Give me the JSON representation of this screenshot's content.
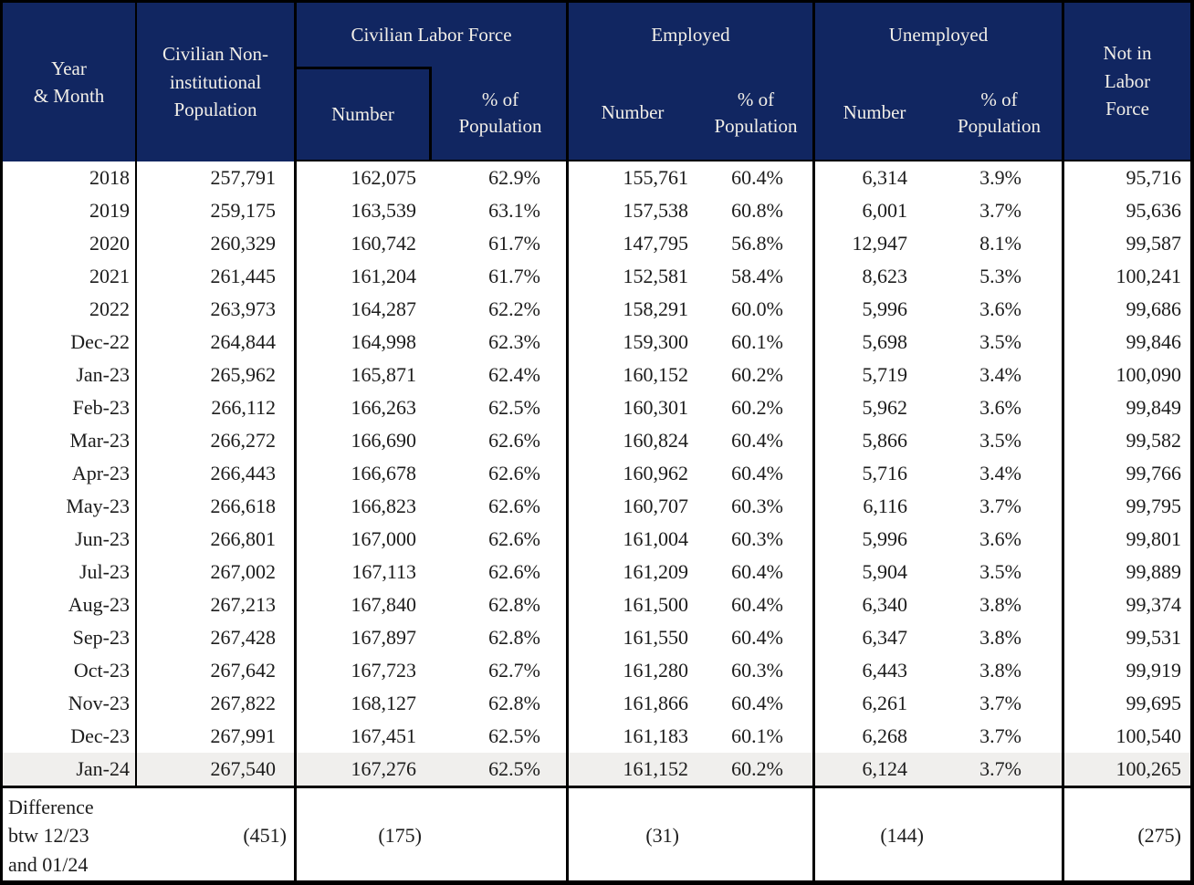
{
  "colors": {
    "header_bg": "#112661",
    "header_text": "#f2efe8",
    "body_text": "#1c1c1c",
    "highlight_row_bg": "#f0efed",
    "border": "#000000"
  },
  "header": {
    "year_month": [
      "Year",
      "& Month"
    ],
    "population": [
      "Civilian Non-",
      "institutional",
      "Population"
    ],
    "clf_label": "Civilian Labor Force",
    "employed_label": "Employed",
    "unemployed_label": "Unemployed",
    "number_label": "Number",
    "pct_label": [
      "% of",
      "Population"
    ],
    "not_in_labor_force": [
      "Not in",
      "Labor",
      "Force"
    ]
  },
  "rows": [
    {
      "label": "2018",
      "pop": "257,791",
      "clf_n": "162,075",
      "clf_p": "62.9%",
      "emp_n": "155,761",
      "emp_p": "60.4%",
      "un_n": "6,314",
      "un_p": "3.9%",
      "nilf": "95,716",
      "highlight": false
    },
    {
      "label": "2019",
      "pop": "259,175",
      "clf_n": "163,539",
      "clf_p": "63.1%",
      "emp_n": "157,538",
      "emp_p": "60.8%",
      "un_n": "6,001",
      "un_p": "3.7%",
      "nilf": "95,636",
      "highlight": false
    },
    {
      "label": "2020",
      "pop": "260,329",
      "clf_n": "160,742",
      "clf_p": "61.7%",
      "emp_n": "147,795",
      "emp_p": "56.8%",
      "un_n": "12,947",
      "un_p": "8.1%",
      "nilf": "99,587",
      "highlight": false
    },
    {
      "label": "2021",
      "pop": "261,445",
      "clf_n": "161,204",
      "clf_p": "61.7%",
      "emp_n": "152,581",
      "emp_p": "58.4%",
      "un_n": "8,623",
      "un_p": "5.3%",
      "nilf": "100,241",
      "highlight": false
    },
    {
      "label": "2022",
      "pop": "263,973",
      "clf_n": "164,287",
      "clf_p": "62.2%",
      "emp_n": "158,291",
      "emp_p": "60.0%",
      "un_n": "5,996",
      "un_p": "3.6%",
      "nilf": "99,686",
      "highlight": false
    },
    {
      "label": "Dec-22",
      "pop": "264,844",
      "clf_n": "164,998",
      "clf_p": "62.3%",
      "emp_n": "159,300",
      "emp_p": "60.1%",
      "un_n": "5,698",
      "un_p": "3.5%",
      "nilf": "99,846",
      "highlight": false
    },
    {
      "label": "Jan-23",
      "pop": "265,962",
      "clf_n": "165,871",
      "clf_p": "62.4%",
      "emp_n": "160,152",
      "emp_p": "60.2%",
      "un_n": "5,719",
      "un_p": "3.4%",
      "nilf": "100,090",
      "highlight": false
    },
    {
      "label": "Feb-23",
      "pop": "266,112",
      "clf_n": "166,263",
      "clf_p": "62.5%",
      "emp_n": "160,301",
      "emp_p": "60.2%",
      "un_n": "5,962",
      "un_p": "3.6%",
      "nilf": "99,849",
      "highlight": false
    },
    {
      "label": "Mar-23",
      "pop": "266,272",
      "clf_n": "166,690",
      "clf_p": "62.6%",
      "emp_n": "160,824",
      "emp_p": "60.4%",
      "un_n": "5,866",
      "un_p": "3.5%",
      "nilf": "99,582",
      "highlight": false
    },
    {
      "label": "Apr-23",
      "pop": "266,443",
      "clf_n": "166,678",
      "clf_p": "62.6%",
      "emp_n": "160,962",
      "emp_p": "60.4%",
      "un_n": "5,716",
      "un_p": "3.4%",
      "nilf": "99,766",
      "highlight": false
    },
    {
      "label": "May-23",
      "pop": "266,618",
      "clf_n": "166,823",
      "clf_p": "62.6%",
      "emp_n": "160,707",
      "emp_p": "60.3%",
      "un_n": "6,116",
      "un_p": "3.7%",
      "nilf": "99,795",
      "highlight": false
    },
    {
      "label": "Jun-23",
      "pop": "266,801",
      "clf_n": "167,000",
      "clf_p": "62.6%",
      "emp_n": "161,004",
      "emp_p": "60.3%",
      "un_n": "5,996",
      "un_p": "3.6%",
      "nilf": "99,801",
      "highlight": false
    },
    {
      "label": "Jul-23",
      "pop": "267,002",
      "clf_n": "167,113",
      "clf_p": "62.6%",
      "emp_n": "161,209",
      "emp_p": "60.4%",
      "un_n": "5,904",
      "un_p": "3.5%",
      "nilf": "99,889",
      "highlight": false
    },
    {
      "label": "Aug-23",
      "pop": "267,213",
      "clf_n": "167,840",
      "clf_p": "62.8%",
      "emp_n": "161,500",
      "emp_p": "60.4%",
      "un_n": "6,340",
      "un_p": "3.8%",
      "nilf": "99,374",
      "highlight": false
    },
    {
      "label": "Sep-23",
      "pop": "267,428",
      "clf_n": "167,897",
      "clf_p": "62.8%",
      "emp_n": "161,550",
      "emp_p": "60.4%",
      "un_n": "6,347",
      "un_p": "3.8%",
      "nilf": "99,531",
      "highlight": false
    },
    {
      "label": "Oct-23",
      "pop": "267,642",
      "clf_n": "167,723",
      "clf_p": "62.7%",
      "emp_n": "161,280",
      "emp_p": "60.3%",
      "un_n": "6,443",
      "un_p": "3.8%",
      "nilf": "99,919",
      "highlight": false
    },
    {
      "label": "Nov-23",
      "pop": "267,822",
      "clf_n": "168,127",
      "clf_p": "62.8%",
      "emp_n": "161,866",
      "emp_p": "60.4%",
      "un_n": "6,261",
      "un_p": "3.7%",
      "nilf": "99,695",
      "highlight": false
    },
    {
      "label": "Dec-23",
      "pop": "267,991",
      "clf_n": "167,451",
      "clf_p": "62.5%",
      "emp_n": "161,183",
      "emp_p": "60.1%",
      "un_n": "6,268",
      "un_p": "3.7%",
      "nilf": "100,540",
      "highlight": false
    },
    {
      "label": "Jan-24",
      "pop": "267,540",
      "clf_n": "167,276",
      "clf_p": "62.5%",
      "emp_n": "161,152",
      "emp_p": "60.2%",
      "un_n": "6,124",
      "un_p": "3.7%",
      "nilf": "100,265",
      "highlight": true
    }
  ],
  "difference": {
    "label": [
      "Difference",
      "btw 12/23",
      "and 01/24"
    ],
    "pop": "(451)",
    "clf": "(175)",
    "emp": "(31)",
    "unemp": "(144)",
    "nilf": "(275)"
  }
}
